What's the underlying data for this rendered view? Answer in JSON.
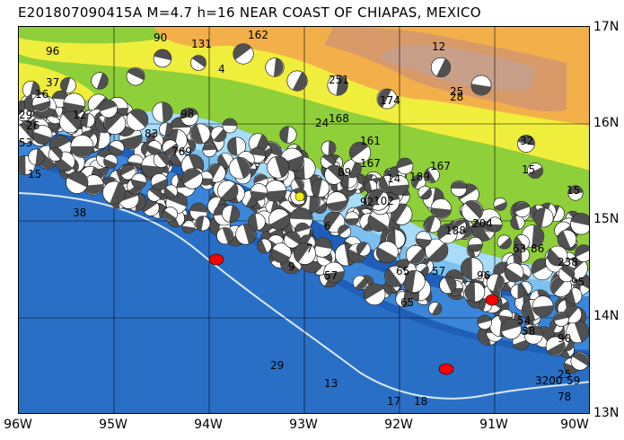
{
  "title": "E201807090415A  M=4.7  h=16  NEAR COAST OF CHIAPAS, MEXICO",
  "lat_labels": [
    "17N",
    "16N",
    "15N",
    "14N",
    "13N"
  ],
  "lon_labels": [
    "96W",
    "95W",
    "94W",
    "93W",
    "92W",
    "91W",
    "90W"
  ],
  "colors": {
    "deep_ocean": "#1f5fb8",
    "mid_ocean": "#3b86d8",
    "shelf": "#7cc0f0",
    "coast_shelf": "#a8dcf8",
    "lowland": "#8fcf3a",
    "hills": "#f0ee3c",
    "upland": "#f3b04a",
    "mountain": "#d99a6a",
    "peak": "#c8a08a",
    "grid": "#000000",
    "trench": "#d8e8f8",
    "beachball_dark": "#505050",
    "beachball_light": "#ffffff",
    "event_highlight": "#ff0000"
  },
  "event_labels": [
    "96",
    "37",
    "16",
    "29",
    "26",
    "53",
    "15",
    "38",
    "12",
    "90",
    "98",
    "83",
    "769",
    "4",
    "131",
    "162",
    "251",
    "174",
    "12",
    "25",
    "28",
    "24",
    "168",
    "161",
    "167",
    "14",
    "167",
    "189",
    "92",
    "102",
    "89",
    "188",
    "204",
    "32",
    "15",
    "15",
    "96",
    "238",
    "86",
    "63",
    "95",
    "54",
    "58",
    "29",
    "17",
    "18",
    "13",
    "25",
    "59",
    "3200",
    "78",
    "6",
    "90",
    "7",
    "9",
    "65",
    "57",
    "57",
    "65"
  ]
}
